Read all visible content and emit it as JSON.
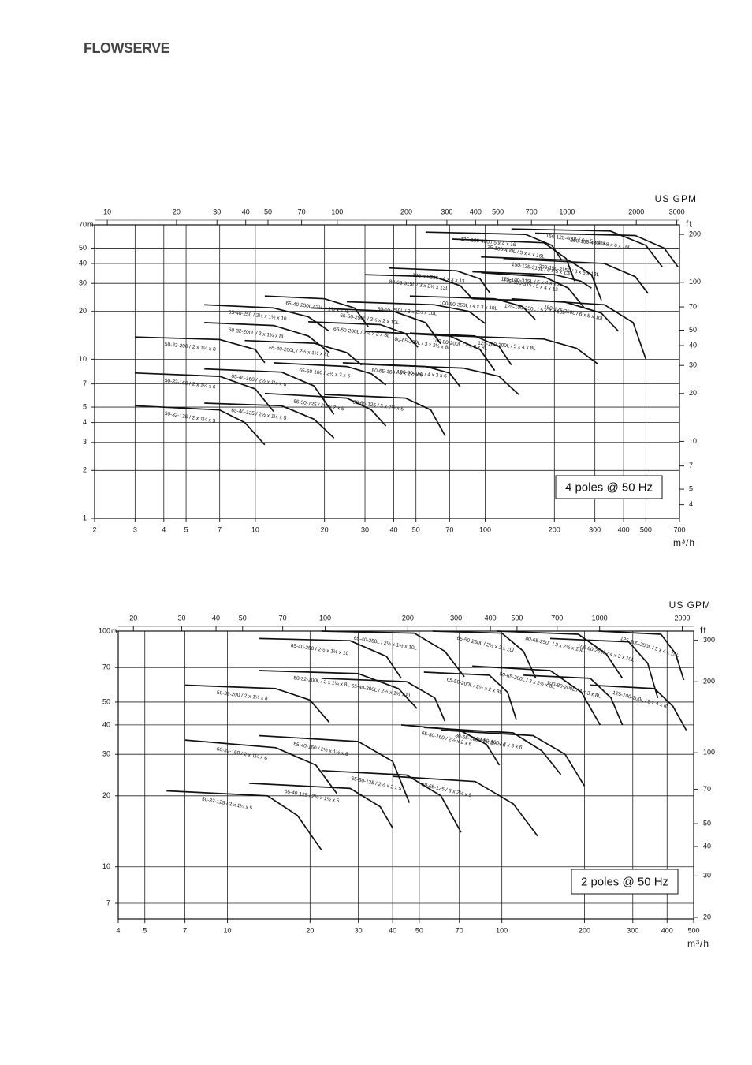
{
  "header": {
    "logo": "FLOWSERVE"
  },
  "chart_data": [
    {
      "type": "line",
      "xscale": "log",
      "yscale": "log",
      "grid": true,
      "color": "#111111",
      "xlabel": "m³/h",
      "x2label": "US GPM",
      "ylabel": "m",
      "y2label": "ft",
      "annotation": "4 poles @ 50 Hz",
      "xlim": [
        2,
        700
      ],
      "xticks": [
        2,
        3,
        4,
        5,
        7,
        10,
        20,
        30,
        40,
        50,
        70,
        100,
        200,
        300,
        400,
        500,
        700
      ],
      "ylim": [
        1,
        70
      ],
      "yticks": [
        1,
        2,
        3,
        4,
        5,
        7,
        10,
        20,
        30,
        40,
        50,
        70
      ],
      "x2lim": [
        8.806,
        3082
      ],
      "x2ticks": [
        10,
        20,
        30,
        40,
        50,
        70,
        100,
        200,
        300,
        400,
        500,
        700,
        1000,
        2000,
        3000
      ],
      "y2lim": [
        3.281,
        229.7
      ],
      "y2ticks": [
        4,
        5,
        7,
        10,
        20,
        30,
        40,
        50,
        70,
        100,
        200
      ],
      "series": [
        {
          "name": "50-32-125 / 2 x 1¼ x 5",
          "x": [
            3,
            7,
            9,
            11
          ],
          "values": [
            5.1,
            4.8,
            4.0,
            2.9
          ]
        },
        {
          "name": "50-32-160 / 2 x 1¼ x 6",
          "x": [
            3,
            7,
            10,
            12
          ],
          "values": [
            8.2,
            7.8,
            6.5,
            4.7
          ]
        },
        {
          "name": "50-32-200 / 2 x 1¼ x 8",
          "x": [
            3,
            7,
            10,
            11
          ],
          "values": [
            13.8,
            13.3,
            11.5,
            9.5
          ]
        },
        {
          "name": "50-32-200L / 2 x 1¼ x 8L",
          "x": [
            6,
            12,
            17,
            21
          ],
          "values": [
            17,
            16.3,
            14,
            11
          ]
        },
        {
          "name": "65-40-250 / 2½ x 1½ x 10",
          "x": [
            6,
            12,
            17,
            21
          ],
          "values": [
            22,
            21,
            18.5,
            15
          ]
        },
        {
          "name": "65-40-250L / 2½ x 1½ x 10L",
          "x": [
            11,
            20,
            27,
            31
          ],
          "values": [
            25,
            24,
            21,
            16
          ]
        },
        {
          "name": "65-40-200L / 2½ x 1½ x 8L",
          "x": [
            9,
            18,
            25,
            29
          ],
          "values": [
            13.1,
            12.6,
            11,
            9.2
          ]
        },
        {
          "name": "65-40-160 / 2½ x 1½ x 6",
          "x": [
            6,
            13,
            18,
            22
          ],
          "values": [
            8.7,
            8.3,
            6.8,
            4.5
          ]
        },
        {
          "name": "65-40-125 / 2½ x 1½ x 5",
          "x": [
            6,
            13,
            18,
            22
          ],
          "values": [
            5.3,
            5.1,
            4.2,
            3.2
          ]
        },
        {
          "name": "65-50-125 / 2½ x 2 x 5",
          "x": [
            11,
            25,
            32,
            37
          ],
          "values": [
            6.1,
            5.7,
            4.8,
            3.8
          ]
        },
        {
          "name": "65-50-160 / 2½ x 2 x 6",
          "x": [
            12,
            25,
            32,
            37
          ],
          "values": [
            9.5,
            9,
            8.1,
            6.9
          ]
        },
        {
          "name": "65-50-200L / 2½ x 2 x 8L",
          "x": [
            17,
            35,
            45,
            51
          ],
          "values": [
            17.2,
            16.5,
            14.5,
            11.9
          ]
        },
        {
          "name": "65-50-250L / 2½ x 2 x 10L",
          "x": [
            17.5,
            40,
            55,
            64
          ],
          "values": [
            21,
            20,
            17,
            12.5
          ]
        },
        {
          "name": "80-65-315L / 3 x 2½ x 13L",
          "x": [
            30,
            60,
            78,
            88
          ],
          "values": [
            34,
            33,
            29,
            24
          ]
        },
        {
          "name": "100-80-315 / 4 x 3 x 13",
          "x": [
            38,
            75,
            95,
            105
          ],
          "values": [
            37.5,
            36,
            32,
            26
          ]
        },
        {
          "name": "80-65-250L / 3 x 2½ x 10L",
          "x": [
            25,
            60,
            85,
            100
          ],
          "values": [
            23,
            22,
            20,
            16.8
          ]
        },
        {
          "name": "80-65-200L / 3 x 2½ x 8L",
          "x": [
            30,
            70,
            95,
            110
          ],
          "values": [
            15,
            14,
            11.5,
            8.5
          ]
        },
        {
          "name": "80-65-160 / 3 x 2½ x 6",
          "x": [
            24,
            55,
            70,
            78
          ],
          "values": [
            9.5,
            9,
            8.2,
            6.7
          ]
        },
        {
          "name": "80-65-125 / 3 x 2½ x 5",
          "x": [
            20,
            45,
            58,
            67
          ],
          "values": [
            6,
            5.7,
            4.8,
            3.3
          ]
        },
        {
          "name": "100-80-160 / 4 x 3 x 6",
          "x": [
            29,
            80,
            115,
            140
          ],
          "values": [
            9.3,
            8.8,
            7.8,
            6
          ]
        },
        {
          "name": "100-80-200L / 4 x 3 x 8L",
          "x": [
            47,
            90,
            115,
            130
          ],
          "values": [
            14.6,
            14,
            12,
            9.2
          ]
        },
        {
          "name": "100-80-250L / 4 x 3 x 10L",
          "x": [
            47,
            110,
            145,
            165
          ],
          "values": [
            25,
            24,
            21.5,
            17.8
          ]
        },
        {
          "name": "125-100-200L / 5 x 4 x 8L",
          "x": [
            65,
            180,
            250,
            310
          ],
          "values": [
            14.1,
            13.4,
            11.7,
            9.3
          ]
        },
        {
          "name": "125-100-250L / 5 x 4 x 10L",
          "x": [
            88,
            220,
            320,
            380
          ],
          "values": [
            24,
            23,
            19.5,
            15
          ]
        },
        {
          "name": "125-100-315 / 5 x 4 x 13",
          "x": [
            96,
            180,
            230,
            270
          ],
          "values": [
            35,
            33,
            28,
            21
          ]
        },
        {
          "name": "125-100-315L / 5 x 4 x 13L",
          "x": [
            88,
            200,
            260,
            290
          ],
          "values": [
            35.5,
            34,
            31,
            28
          ]
        },
        {
          "name": "125-100-400 / 5 x 4 x 16",
          "x": [
            55,
            150,
            195,
            215
          ],
          "values": [
            63,
            61,
            52,
            42
          ]
        },
        {
          "name": "125-100-400L / 5 x 4 x 16L",
          "x": [
            72,
            180,
            225,
            245
          ],
          "values": [
            57,
            54,
            43,
            31
          ]
        },
        {
          "name": "150-125-400L / 6 x 5 x 16L",
          "x": [
            130,
            350,
            500,
            590
          ],
          "values": [
            66,
            64,
            52,
            38
          ]
        },
        {
          "name": "200-150-400L / 8 x 6 x 16L",
          "x": [
            165,
            450,
            600,
            690
          ],
          "values": [
            62,
            60,
            50,
            38
          ]
        },
        {
          "name": "150-125-315L / 6 x 5 x 13L",
          "x": [
            96,
            230,
            290,
            320
          ],
          "values": [
            44,
            42,
            34,
            23.5
          ]
        },
        {
          "name": "200-150-315L / 8 x 6 x 13L",
          "x": [
            120,
            330,
            450,
            510
          ],
          "values": [
            43,
            40,
            33,
            26
          ]
        },
        {
          "name": "150-125-250L / 6 x 5 x 10L",
          "x": [
            130,
            330,
            440,
            500
          ],
          "values": [
            24,
            22,
            17,
            10
          ]
        }
      ]
    },
    {
      "type": "line",
      "xscale": "log",
      "yscale": "log",
      "grid": true,
      "color": "#111111",
      "xlabel": "m³/h",
      "x2label": "US GPM",
      "ylabel": "m",
      "y2label": "ft",
      "annotation": "2 poles @ 50 Hz",
      "xlim": [
        4,
        500
      ],
      "xticks": [
        4,
        5,
        7,
        10,
        20,
        30,
        40,
        50,
        70,
        100,
        200,
        300,
        400,
        500
      ],
      "ylim": [
        6,
        100
      ],
      "yticks": [
        7,
        10,
        20,
        30,
        40,
        50,
        70,
        100
      ],
      "x2lim": [
        17.61,
        2201.6
      ],
      "x2ticks": [
        20,
        30,
        40,
        50,
        70,
        100,
        200,
        300,
        400,
        500,
        700,
        1000,
        2000
      ],
      "y2lim": [
        19.69,
        328.1
      ],
      "y2ticks": [
        20,
        30,
        40,
        50,
        70,
        100,
        200,
        300
      ],
      "series": [
        {
          "name": "50-32-125 / 2 x 1¼ x 5",
          "x": [
            6,
            14,
            18,
            22
          ],
          "values": [
            21,
            20,
            16.5,
            11.8
          ]
        },
        {
          "name": "50-32-160 / 2 x 1¼ x 6",
          "x": [
            7,
            15,
            21,
            25
          ],
          "values": [
            34.5,
            32,
            27,
            20.5
          ]
        },
        {
          "name": "50-32-200 / 2 x 1¼ x 8",
          "x": [
            7,
            15,
            20,
            23.5
          ],
          "values": [
            59,
            57,
            51,
            41
          ]
        },
        {
          "name": "50-32-200L / 2 x 1¼ x 8L",
          "x": [
            13,
            30,
            42,
            49
          ],
          "values": [
            68,
            66,
            57,
            47
          ]
        },
        {
          "name": "65-40-250 / 2½ x 1½ x 10",
          "x": [
            13,
            28,
            38,
            43
          ],
          "values": [
            93,
            91,
            78,
            63
          ]
        },
        {
          "name": "65-40-250L / 2½ x 1½ x 10L",
          "x": [
            22,
            48,
            62,
            73
          ],
          "values": [
            100,
            98,
            82,
            64
          ]
        },
        {
          "name": "65-40-200L / 2½ x 1½ x 8L",
          "x": [
            22,
            45,
            57,
            62
          ],
          "values": [
            63,
            61,
            52,
            41.5
          ]
        },
        {
          "name": "65-40-160 / 2½ x 1½ x 6",
          "x": [
            13,
            30,
            40,
            46
          ],
          "values": [
            36,
            34,
            28,
            18.7
          ]
        },
        {
          "name": "65-40-125 / 2½ x 1½ x 5",
          "x": [
            12,
            28,
            36,
            40
          ],
          "values": [
            22.6,
            21.5,
            18,
            14.6
          ]
        },
        {
          "name": "65-50-125 / 2½ x 2 x 5",
          "x": [
            22,
            45,
            60,
            71
          ],
          "values": [
            25.6,
            24.5,
            20,
            14
          ]
        },
        {
          "name": "65-50-160 / 2½ x 2 x 6",
          "x": [
            43,
            70,
            88,
            98
          ],
          "values": [
            40,
            38,
            33,
            27
          ]
        },
        {
          "name": "65-50-200L / 2½ x 2 x 8L",
          "x": [
            52,
            90,
            105,
            113
          ],
          "values": [
            67,
            65,
            55,
            42
          ]
        },
        {
          "name": "65-50-250L / 2½ x 2 x 10L",
          "x": [
            56,
            100,
            120,
            133
          ],
          "values": [
            100,
            98,
            82,
            63
          ]
        },
        {
          "name": "80-65-125 / 3 x 2½ x 5",
          "x": [
            40,
            80,
            110,
            135
          ],
          "values": [
            24.2,
            23,
            18.5,
            13.5
          ]
        },
        {
          "name": "80-65-160 / 3 x 2½ x 6",
          "x": [
            52,
            110,
            140,
            164
          ],
          "values": [
            39,
            37,
            31,
            24.6
          ]
        },
        {
          "name": "80-65-200L / 3 x 2½ x 8L",
          "x": [
            78,
            150,
            195,
            228
          ],
          "values": [
            71,
            68,
            55,
            40
          ]
        },
        {
          "name": "80-65-250L / 3 x 2½ x 10L",
          "x": [
            96,
            190,
            240,
            275
          ],
          "values": [
            100,
            97,
            80,
            63
          ]
        },
        {
          "name": "100-80-160 / 4 x 3 x 6",
          "x": [
            60,
            130,
            170,
            200
          ],
          "values": [
            38,
            36,
            30,
            22
          ]
        },
        {
          "name": "100-80-200L / 4 x 3 x 8L",
          "x": [
            120,
            210,
            250,
            275
          ],
          "values": [
            65,
            63,
            52,
            40
          ]
        },
        {
          "name": "100-80-250L / 4 x 3 x 10L",
          "x": [
            150,
            290,
            340,
            370
          ],
          "values": [
            93,
            90,
            73,
            52
          ]
        },
        {
          "name": "125-100-250L / 5 x 4 x 10L",
          "x": [
            225,
            380,
            430,
            460
          ],
          "values": [
            100,
            97,
            80,
            62
          ]
        },
        {
          "name": "125-100-200L / 5 x 4 x 8L",
          "x": [
            210,
            360,
            420,
            470
          ],
          "values": [
            59,
            57,
            48,
            38
          ]
        }
      ]
    }
  ]
}
